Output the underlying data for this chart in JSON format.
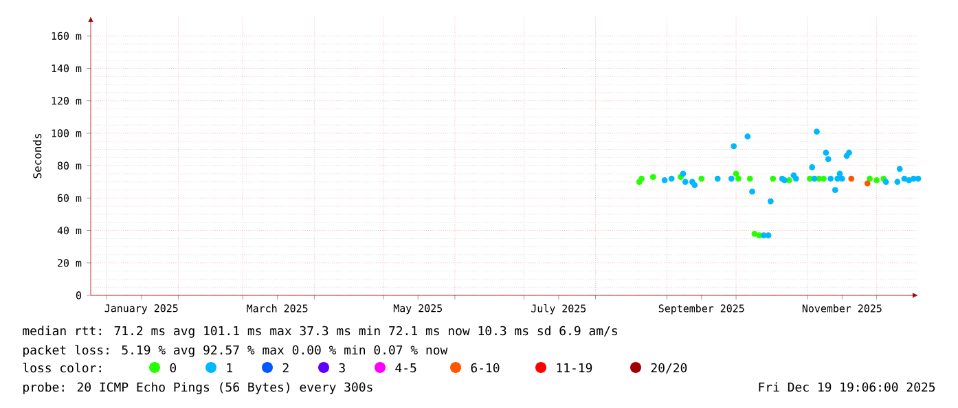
{
  "chart_data": {
    "type": "scatter",
    "ylabel": "Seconds",
    "x": [
      "2025-08-20",
      "2025-08-21",
      "2025-08-26",
      "2025-08-31",
      "2025-09-03",
      "2025-09-07",
      "2025-09-08",
      "2025-09-09",
      "2025-09-12",
      "2025-09-13",
      "2025-09-16",
      "2025-09-23",
      "2025-09-29",
      "2025-09-30",
      "2025-10-01",
      "2025-10-02",
      "2025-10-06",
      "2025-10-07",
      "2025-10-08",
      "2025-10-09",
      "2025-10-11",
      "2025-10-13",
      "2025-10-15",
      "2025-10-16",
      "2025-10-17",
      "2025-10-21",
      "2025-10-22",
      "2025-10-24",
      "2025-10-26",
      "2025-10-27",
      "2025-11-02",
      "2025-11-03",
      "2025-11-04",
      "2025-11-05",
      "2025-11-06",
      "2025-11-08",
      "2025-11-09",
      "2025-11-10",
      "2025-11-11",
      "2025-11-13",
      "2025-11-14",
      "2025-11-15",
      "2025-11-16",
      "2025-11-18",
      "2025-11-19",
      "2025-11-20",
      "2025-11-24",
      "2025-11-27",
      "2025-11-28",
      "2025-12-01",
      "2025-12-04",
      "2025-12-05",
      "2025-12-10",
      "2025-12-11",
      "2025-12-13",
      "2025-12-15",
      "2025-12-17",
      "2025-12-19"
    ],
    "marker": "circle",
    "series": [
      {
        "name": "0",
        "color": "#26ff00",
        "values": [
          70,
          72,
          73,
          null,
          null,
          73,
          null,
          null,
          null,
          null,
          72,
          null,
          null,
          null,
          75,
          72,
          null,
          72,
          null,
          38,
          37,
          null,
          null,
          null,
          72,
          null,
          null,
          71,
          null,
          null,
          72,
          null,
          null,
          null,
          72,
          72,
          null,
          null,
          null,
          null,
          null,
          null,
          null,
          null,
          null,
          null,
          null,
          null,
          72,
          71,
          72,
          null,
          null,
          null,
          null,
          null,
          null,
          null
        ]
      },
      {
        "name": "1",
        "color": "#00b8ff",
        "values": [
          null,
          null,
          null,
          71,
          72,
          null,
          75,
          70,
          70,
          68,
          null,
          72,
          72,
          92,
          null,
          null,
          98,
          null,
          64,
          null,
          null,
          37,
          37,
          58,
          null,
          72,
          71,
          null,
          74,
          72,
          null,
          79,
          72,
          101,
          null,
          null,
          88,
          84,
          72,
          65,
          72,
          75,
          72,
          86,
          88,
          null,
          null,
          null,
          null,
          null,
          null,
          70,
          70,
          78,
          72,
          71,
          72,
          72
        ]
      },
      {
        "name": "2",
        "color": "#0059ff",
        "values": [
          null,
          null,
          null,
          null,
          null,
          null,
          null,
          null,
          null,
          null,
          null,
          null,
          null,
          null,
          null,
          null,
          null,
          null,
          null,
          null,
          null,
          null,
          null,
          null,
          null,
          null,
          null,
          null,
          null,
          null,
          null,
          null,
          null,
          null,
          null,
          null,
          null,
          null,
          null,
          null,
          null,
          null,
          null,
          null,
          null,
          null,
          null,
          null,
          null,
          null,
          null,
          null,
          null,
          null,
          null,
          null,
          null,
          null
        ]
      },
      {
        "name": "3",
        "color": "#5e00ff",
        "values": [
          null,
          null,
          null,
          null,
          null,
          null,
          null,
          null,
          null,
          null,
          null,
          null,
          null,
          null,
          null,
          null,
          null,
          null,
          null,
          null,
          null,
          null,
          null,
          null,
          null,
          null,
          null,
          null,
          null,
          null,
          null,
          null,
          null,
          null,
          null,
          null,
          null,
          null,
          null,
          null,
          null,
          null,
          null,
          null,
          null,
          null,
          null,
          null,
          null,
          null,
          null,
          null,
          null,
          null,
          null,
          null,
          null,
          null
        ]
      },
      {
        "name": "4-5",
        "color": "#ff00ff",
        "values": [
          null,
          null,
          null,
          null,
          null,
          null,
          null,
          null,
          null,
          null,
          null,
          null,
          null,
          null,
          null,
          null,
          null,
          null,
          null,
          null,
          null,
          null,
          null,
          null,
          null,
          null,
          null,
          null,
          null,
          null,
          null,
          null,
          null,
          null,
          null,
          null,
          null,
          null,
          null,
          null,
          null,
          null,
          null,
          null,
          null,
          null,
          null,
          null,
          null,
          null,
          null,
          null,
          null,
          null,
          null,
          null,
          null,
          null
        ]
      },
      {
        "name": "6-10",
        "color": "#ff5500",
        "values": [
          null,
          null,
          null,
          null,
          null,
          null,
          null,
          null,
          null,
          null,
          null,
          null,
          null,
          null,
          null,
          null,
          null,
          null,
          null,
          null,
          null,
          null,
          null,
          null,
          null,
          null,
          null,
          null,
          null,
          null,
          null,
          null,
          null,
          null,
          null,
          null,
          null,
          null,
          null,
          null,
          null,
          null,
          null,
          null,
          null,
          72,
          null,
          69,
          null,
          null,
          null,
          null,
          null,
          null,
          null,
          null,
          null,
          null
        ]
      },
      {
        "name": "11-19",
        "color": "#ff0000",
        "values": [
          null,
          null,
          null,
          null,
          null,
          null,
          null,
          null,
          null,
          null,
          null,
          null,
          null,
          null,
          null,
          null,
          null,
          null,
          null,
          null,
          null,
          null,
          null,
          null,
          null,
          null,
          null,
          null,
          null,
          null,
          null,
          null,
          null,
          null,
          null,
          null,
          null,
          null,
          null,
          null,
          null,
          null,
          null,
          null,
          null,
          null,
          null,
          null,
          null,
          null,
          null,
          null,
          null,
          null,
          null,
          null,
          null,
          null
        ]
      },
      {
        "name": "20/20",
        "color": "#a10000",
        "values": [
          null,
          null,
          null,
          null,
          null,
          null,
          null,
          null,
          null,
          null,
          null,
          null,
          null,
          null,
          null,
          null,
          null,
          null,
          null,
          null,
          null,
          null,
          null,
          null,
          null,
          null,
          null,
          null,
          null,
          null,
          null,
          null,
          null,
          null,
          null,
          null,
          null,
          null,
          null,
          null,
          null,
          null,
          null,
          null,
          null,
          null,
          null,
          null,
          null,
          null,
          null,
          null,
          null,
          null,
          null,
          null,
          null,
          null
        ]
      }
    ],
    "legend_title": "loss color:",
    "legend": "bottom",
    "xlim": [
      "2024-12-25",
      "2025-12-19"
    ],
    "xticks": [
      {
        "value": "2025-01-16",
        "label": "January 2025"
      },
      {
        "value": "2025-03-16",
        "label": "March 2025"
      },
      {
        "value": "2025-05-16",
        "label": "May 2025"
      },
      {
        "value": "2025-07-16",
        "label": "July 2025"
      },
      {
        "value": "2025-09-16",
        "label": "September 2025"
      },
      {
        "value": "2025-11-16",
        "label": "November 2025"
      },
      {
        "value": "2025-01-01",
        "label": null
      },
      {
        "value": "2025-02-01",
        "label": null
      },
      {
        "value": "2025-03-01",
        "label": null
      },
      {
        "value": "2025-04-01",
        "label": null
      },
      {
        "value": "2025-05-01",
        "label": null
      },
      {
        "value": "2025-06-01",
        "label": null
      },
      {
        "value": "2025-07-01",
        "label": null
      },
      {
        "value": "2025-08-01",
        "label": null
      },
      {
        "value": "2025-09-01",
        "label": null
      },
      {
        "value": "2025-10-01",
        "label": null
      },
      {
        "value": "2025-11-01",
        "label": null
      },
      {
        "value": "2025-12-01",
        "label": null
      }
    ],
    "ylim": [
      0,
      172
    ],
    "yticks": [
      0,
      {
        "value": 20,
        "label": "20 m"
      },
      {
        "value": 40,
        "label": "40 m"
      },
      {
        "value": 60,
        "label": "60 m"
      },
      {
        "value": 80,
        "label": "80 m"
      },
      {
        "value": 100,
        "label": "100 m"
      },
      {
        "value": 120,
        "label": "120 m"
      },
      {
        "value": 140,
        "label": "140 m"
      },
      {
        "value": 160,
        "label": "160 m"
      }
    ],
    "grid": true,
    "annotations": [
      "median rtt:  71.2 ms avg  101.1 ms max  37.3 ms min  72.1 ms now  10.3 ms sd  6.9   am/s",
      "packet loss: 5.19 % avg  92.57 % max  0.00 % min  0.07 % now",
      "probe:       20 ICMP Echo Pings (56 Bytes) every 300s",
      "Fri Dec 19 19:06:00 2025"
    ]
  }
}
